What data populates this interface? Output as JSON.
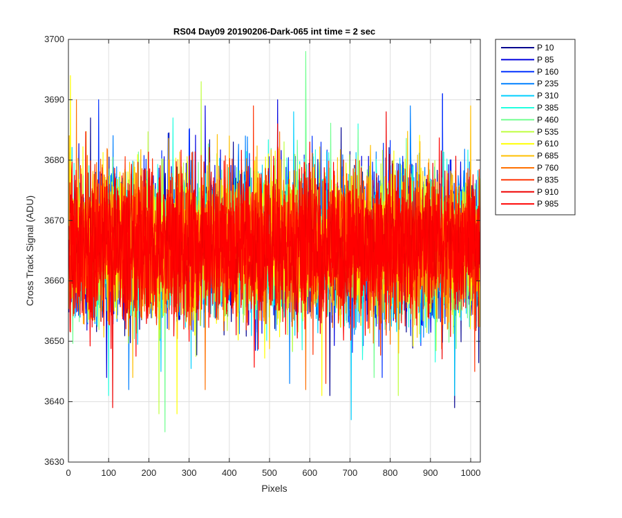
{
  "chart_data": {
    "type": "line",
    "title": "RS04 Day09 20190206-Dark-065 int time = 2 sec",
    "xlabel": "Pixels",
    "ylabel": "Cross Track Signal (ADU)",
    "xlim": [
      0,
      1024
    ],
    "ylim": [
      3630,
      3700
    ],
    "xticks": [
      0,
      100,
      200,
      300,
      400,
      500,
      600,
      700,
      800,
      900,
      1000
    ],
    "yticks": [
      3630,
      3640,
      3650,
      3660,
      3670,
      3680,
      3690,
      3700
    ],
    "grid": true,
    "legend_position": "outside-top-right",
    "noise": {
      "n_points": 1024,
      "mean": 3666,
      "std": 6
    },
    "series": [
      {
        "name": "P 10",
        "color": "#00008F",
        "extremes": [
          [
            55,
            3687
          ],
          [
            410,
            3683
          ],
          [
            650,
            3641
          ],
          [
            960,
            3639
          ]
        ]
      },
      {
        "name": "P 85",
        "color": "#0000DF",
        "extremes": [
          [
            95,
            3644
          ],
          [
            340,
            3689
          ],
          [
            520,
            3690
          ],
          [
            930,
            3691
          ]
        ]
      },
      {
        "name": "P 160",
        "color": "#0030FF",
        "extremes": [
          [
            75,
            3690
          ],
          [
            300,
            3685
          ],
          [
            780,
            3644
          ],
          [
            930,
            3691
          ]
        ]
      },
      {
        "name": "P 235",
        "color": "#0080FF",
        "extremes": [
          [
            150,
            3642
          ],
          [
            440,
            3684
          ],
          [
            550,
            3643
          ],
          [
            850,
            3689
          ]
        ]
      },
      {
        "name": "P 310",
        "color": "#00CFFF",
        "extremes": [
          [
            230,
            3645
          ],
          [
            560,
            3688
          ],
          [
            703,
            3637
          ],
          [
            960,
            3641
          ]
        ]
      },
      {
        "name": "P 385",
        "color": "#20FFDF",
        "extremes": [
          [
            100,
            3641
          ],
          [
            260,
            3687
          ],
          [
            720,
            3686
          ]
        ]
      },
      {
        "name": "P 460",
        "color": "#70FF8F",
        "extremes": [
          [
            240,
            3635
          ],
          [
            590,
            3698
          ],
          [
            760,
            3644
          ]
        ]
      },
      {
        "name": "P 535",
        "color": "#BFFF40",
        "extremes": [
          [
            225,
            3638
          ],
          [
            330,
            3693
          ],
          [
            820,
            3641
          ]
        ]
      },
      {
        "name": "P 610",
        "color": "#FFFF00",
        "extremes": [
          [
            5,
            3694
          ],
          [
            270,
            3638
          ],
          [
            630,
            3641
          ]
        ]
      },
      {
        "name": "P 685",
        "color": "#FFBF00",
        "extremes": [
          [
            160,
            3644
          ],
          [
            400,
            3684
          ],
          [
            1000,
            3689
          ]
        ]
      },
      {
        "name": "P 760",
        "color": "#FF7000",
        "extremes": [
          [
            20,
            3690
          ],
          [
            340,
            3642
          ],
          [
            590,
            3642
          ]
        ]
      },
      {
        "name": "P 835",
        "color": "#FF3000",
        "extremes": [
          [
            460,
            3689
          ],
          [
            640,
            3643
          ],
          [
            1010,
            3645
          ]
        ]
      },
      {
        "name": "P 910",
        "color": "#EF0000",
        "extremes": [
          [
            110,
            3639
          ],
          [
            520,
            3686
          ],
          [
            790,
            3688
          ]
        ]
      },
      {
        "name": "P 985",
        "color": "#FF0000",
        "extremes": [
          [
            300,
            3650
          ],
          [
            600,
            3683
          ]
        ]
      }
    ]
  }
}
